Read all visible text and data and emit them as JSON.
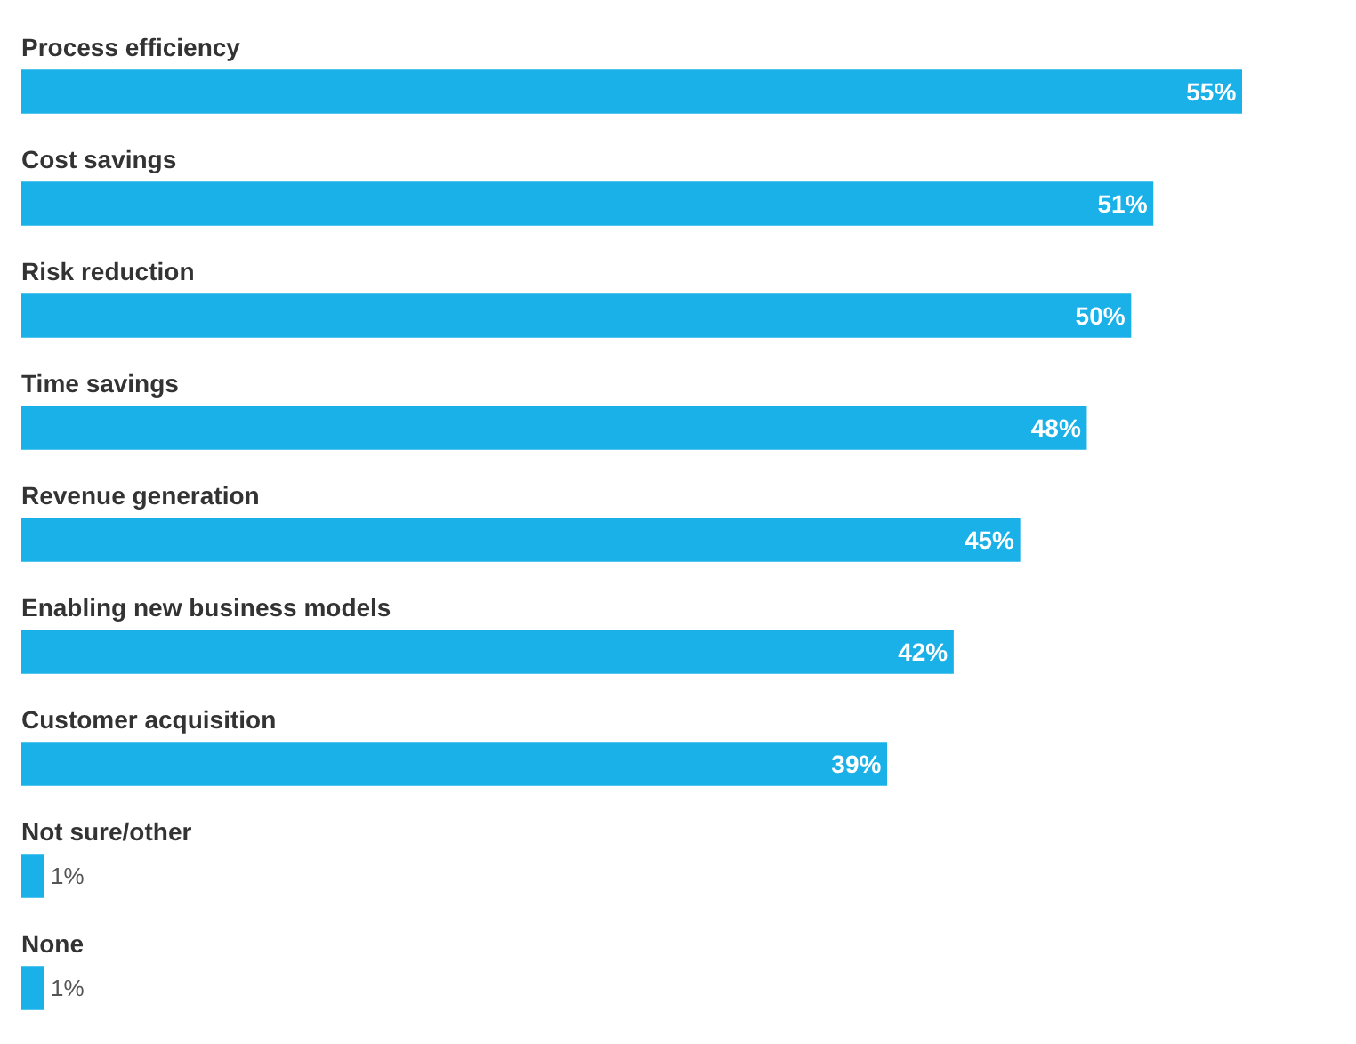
{
  "chart_data": {
    "type": "bar",
    "orientation": "horizontal",
    "categories": [
      "Process efficiency",
      "Cost savings",
      "Risk reduction",
      "Time savings",
      "Revenue generation",
      "Enabling new business models",
      "Customer acquisition",
      "Not sure/other",
      "None"
    ],
    "values": [
      55,
      51,
      50,
      48,
      45,
      42,
      39,
      1,
      1
    ],
    "value_labels": [
      "55%",
      "51%",
      "50%",
      "48%",
      "45%",
      "42%",
      "39%",
      "1%",
      "1%"
    ],
    "color": "#1ab0e8",
    "legend": false
  }
}
